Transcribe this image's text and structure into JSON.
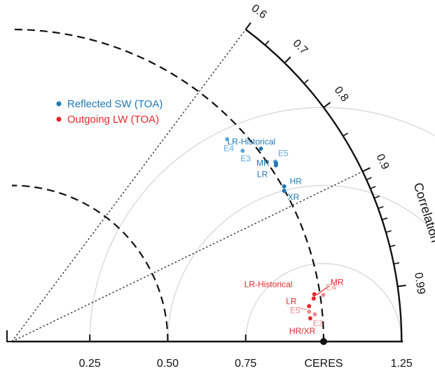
{
  "chart_data": {
    "type": "scatter",
    "subtype": "taylor-diagram",
    "title": "",
    "reference": {
      "label": "CERES",
      "value": 1.0
    },
    "radial_axis": {
      "ticks": [
        0.25,
        0.5,
        0.75,
        1.0,
        1.25
      ],
      "tick_labels": [
        "0.25",
        "0.50",
        "0.75",
        "CERES",
        "1.25"
      ],
      "max": 1.25
    },
    "correlation_axis": {
      "label": "Correlation",
      "labeled_ticks": [
        0.6,
        0.7,
        0.8,
        0.9,
        0.99
      ],
      "tick_labels": [
        "0.6",
        "0.7",
        "0.8",
        "0.9",
        "0.99"
      ],
      "minor_ticks": [
        0.65,
        0.75,
        0.85,
        0.91,
        0.92,
        0.93,
        0.94,
        0.95,
        0.96,
        0.97,
        0.98
      ]
    },
    "dashed_arc_radii": [
      0.5,
      1.0
    ],
    "rmse_arc_radii": [
      0.25,
      0.5,
      0.75
    ],
    "dotted_ray_correlations": [
      0.6,
      0.9
    ],
    "legend": {
      "position": "top-left",
      "entries": [
        {
          "label": "Reflected SW (TOA)",
          "color": "#1f77b4"
        },
        {
          "label": "Outgoing LW (TOA)",
          "color": "#e8272c"
        }
      ]
    },
    "series": [
      {
        "name": "Reflected SW (TOA)",
        "color": "#1f77b4",
        "light_color": "#5ba7dd",
        "points": [
          {
            "label": "LR-Historical",
            "std": 1.01,
            "corr": 0.791,
            "shade": "dark"
          },
          {
            "label": "E5",
            "std": 1.023,
            "corr": 0.826,
            "shade": "light"
          },
          {
            "label": "MR",
            "std": 1.022,
            "corr": 0.829,
            "shade": "dark"
          },
          {
            "label": "LR",
            "std": 1.018,
            "corr": 0.832,
            "shade": "dark"
          },
          {
            "label": "E3",
            "std": 0.96,
            "corr": 0.771,
            "shade": "light"
          },
          {
            "label": "E4",
            "std": 0.947,
            "corr": 0.729,
            "shade": "light"
          },
          {
            "label": "HR",
            "std": 1.005,
            "corr": 0.869,
            "shade": "dark"
          },
          {
            "label": "XR",
            "std": 0.998,
            "corr": 0.875,
            "shade": "dark"
          }
        ]
      },
      {
        "name": "Outgoing LW (TOA)",
        "color": "#e8272c",
        "light_color": "#ef8a8c",
        "points": [
          {
            "label": "LR-Historical",
            "std": 0.982,
            "corr": 0.988,
            "shade": "dark"
          },
          {
            "label": "MR",
            "std": 0.978,
            "corr": 0.99,
            "shade": "dark"
          },
          {
            "label": "LR",
            "std": 0.96,
            "corr": 0.993,
            "shade": "dark"
          },
          {
            "label": "E4",
            "std": 1.01,
            "corr": 0.989,
            "shade": "light"
          },
          {
            "label": "E5",
            "std": 0.958,
            "corr": 0.995,
            "shade": "light"
          },
          {
            "label": "E3",
            "std": 0.976,
            "corr": 0.996,
            "shade": "light"
          },
          {
            "label": "HR/XR",
            "std": 0.96,
            "corr": 0.997,
            "shade": "dark"
          }
        ]
      }
    ]
  }
}
